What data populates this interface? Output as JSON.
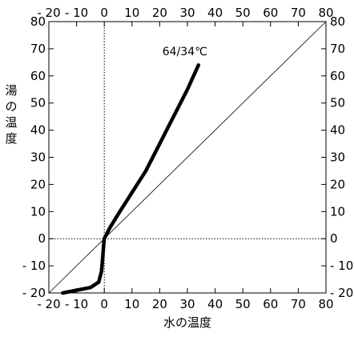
{
  "chart_data": {
    "type": "line",
    "xlabel": "水の温度",
    "ylabel": "湯の温度",
    "xlim": [
      -20,
      80
    ],
    "ylim": [
      -20,
      80
    ],
    "xticks": [
      -20,
      -10,
      0,
      10,
      20,
      30,
      40,
      50,
      60,
      70,
      80
    ],
    "yticks": [
      -20,
      -10,
      0,
      10,
      20,
      30,
      40,
      50,
      60,
      70,
      80
    ],
    "xtick_labels": [
      "- 20",
      "- 10",
      "0",
      "10",
      "20",
      "30",
      "40",
      "50",
      "60",
      "70",
      "80"
    ],
    "ytick_labels_left": [
      "- 20",
      "- 10",
      "0",
      "10",
      "20",
      "30",
      "40",
      "50",
      "60",
      "70",
      "80"
    ],
    "ytick_labels_right": [
      "- 20",
      "- 10",
      "0",
      "10",
      "20",
      "30",
      "40",
      "50",
      "60",
      "70",
      "80"
    ],
    "reference_lines": [
      {
        "type": "diagonal",
        "from": [
          -20,
          -20
        ],
        "to": [
          80,
          80
        ],
        "style": "solid-thin"
      },
      {
        "type": "vertical",
        "x": 0,
        "style": "dotted"
      },
      {
        "type": "horizontal",
        "y": 0,
        "style": "dotted"
      }
    ],
    "series": [
      {
        "x": [
          -15,
          -10,
          -5,
          -2,
          -1,
          -0.5,
          -0.2,
          0,
          1,
          2,
          5,
          10,
          15,
          20,
          25,
          30,
          34
        ],
        "y": [
          -20,
          -19,
          -18,
          -16,
          -12,
          -6,
          -2,
          0,
          2,
          4,
          9,
          17,
          25,
          35,
          45,
          55,
          64
        ]
      }
    ],
    "annotations": [
      {
        "text": "64/34℃",
        "x": 34,
        "y": 64
      }
    ]
  }
}
